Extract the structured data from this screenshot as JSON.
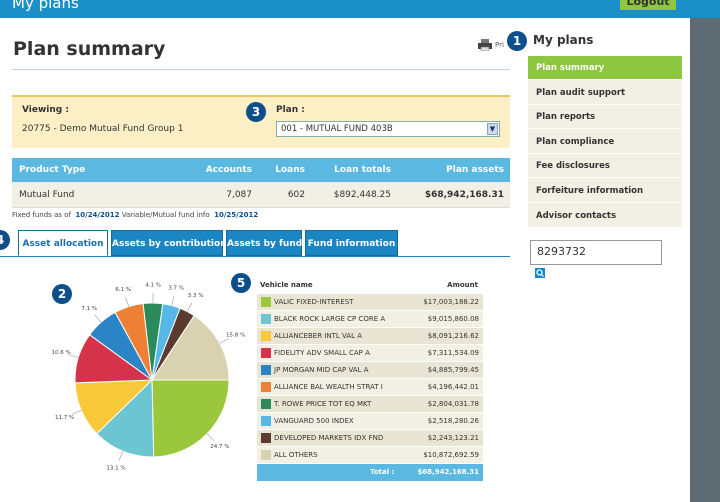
{
  "header": {
    "title": "My plans",
    "logout": "Logout"
  },
  "page": {
    "title": "Plan summary",
    "print": "Pri"
  },
  "badges": [
    "1",
    "2",
    "3",
    "4",
    "5"
  ],
  "sidebar": {
    "title": "My plans",
    "items": [
      "Plan summary",
      "Plan audit support",
      "Plan reports",
      "Plan compliance",
      "Fee disclosures",
      "Forfeiture information",
      "Advisor contacts"
    ],
    "search": "8293732"
  },
  "viewing": {
    "label": "Viewing :",
    "value": "20775 - Demo Mutual Fund Group 1",
    "plan_label": "Plan :",
    "plan": "001 - MUTUAL FUND 403B"
  },
  "summary": {
    "headers": [
      "Product Type",
      "Accounts",
      "Loans",
      "Loan totals",
      "Plan assets"
    ],
    "rows": [
      [
        "Mutual Fund",
        "7,087",
        "602",
        "$892,448.25",
        "$68,942,168.31"
      ]
    ]
  },
  "footnote": {
    "fixed_label": "Fixed funds as of",
    "fixed_date": "10/24/2012",
    "variable_label": "Variable/Mutual fund info",
    "variable_date": "10/25/2012"
  },
  "tabs": [
    "Asset allocation",
    "Assets by contribution",
    "Assets by fund",
    "Fund information"
  ],
  "pie": {
    "values": [
      24.7,
      13.1,
      11.7,
      10.6,
      7.1,
      6.1,
      4.1,
      3.7,
      3.3,
      15.8
    ],
    "value_labels": [
      "24.7 %",
      "13.1 %",
      "11.7 %",
      "10.6 %",
      "7.1 %",
      "6.1 %",
      "4.1 %",
      "3.7 %",
      "3.3 %",
      "15.8 %"
    ]
  },
  "funds": {
    "headers": [
      "Vehicle name",
      "Amount"
    ],
    "rows": [
      {
        "name": "VALIC FIXED-INTEREST",
        "amount": "$17,003,188.22",
        "color": "#9ac73c"
      },
      {
        "name": "BLACK ROCK LARGE CP CORE A",
        "amount": "$9,015,860.08",
        "color": "#6cc6d2"
      },
      {
        "name": "ALLIANCEBER INTL VAL A",
        "amount": "$8,091,216.62",
        "color": "#f9c93a"
      },
      {
        "name": "FIDELITY ADV SMALL CAP A",
        "amount": "$7,311,534.09",
        "color": "#d4334a"
      },
      {
        "name": "JP MORGAN MID CAP VAL A",
        "amount": "$4,885,799.45",
        "color": "#2a84c6"
      },
      {
        "name": "ALLIANCE BAL WEALTH STRAT I",
        "amount": "$4,196,442.01",
        "color": "#ee8036"
      },
      {
        "name": "T. ROWE PRICE TOT EQ MKT",
        "amount": "$2,804,031.78",
        "color": "#2b8a5b"
      },
      {
        "name": "VANGUARD 500 INDEX",
        "amount": "$2,518,280.26",
        "color": "#55b8e6"
      },
      {
        "name": "DEVELOPED MARKETS IDX FND",
        "amount": "$2,243,123.21",
        "color": "#5b3a2f"
      },
      {
        "name": "ALL OTHERS",
        "amount": "$10,872,692.59",
        "color": "#d9d2b0"
      }
    ],
    "total_label": "Total :",
    "total": "$68,942,168.31"
  }
}
